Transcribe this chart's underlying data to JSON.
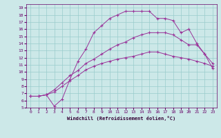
{
  "background_color": "#cce8e8",
  "line_color": "#993399",
  "grid_color": "#99cccc",
  "xlabel": "Windchill (Refroidissement éolien,°C)",
  "xlim": [
    -0.5,
    23.5
  ],
  "ylim": [
    5,
    19.5
  ],
  "xticks": [
    0,
    1,
    2,
    3,
    4,
    5,
    6,
    7,
    8,
    9,
    10,
    11,
    12,
    13,
    14,
    15,
    16,
    17,
    18,
    19,
    20,
    21,
    22,
    23
  ],
  "yticks": [
    5,
    6,
    7,
    8,
    9,
    10,
    11,
    12,
    13,
    14,
    15,
    16,
    17,
    18,
    19
  ],
  "line1_x": [
    0,
    1,
    2,
    3,
    4,
    5,
    6,
    7,
    8,
    9,
    10,
    11,
    12,
    13,
    14,
    15,
    16,
    17,
    18,
    19,
    20,
    21,
    22,
    23
  ],
  "line1_y": [
    6.6,
    6.6,
    6.8,
    7.2,
    8.0,
    8.8,
    9.5,
    10.3,
    10.8,
    11.2,
    11.5,
    11.8,
    12.0,
    12.2,
    12.5,
    12.8,
    12.8,
    12.5,
    12.2,
    12.0,
    11.8,
    11.5,
    11.2,
    10.8
  ],
  "line2_x": [
    0,
    1,
    2,
    3,
    4,
    5,
    6,
    7,
    8,
    9,
    10,
    11,
    12,
    13,
    14,
    15,
    16,
    17,
    18,
    19,
    20,
    21,
    22,
    23
  ],
  "line2_y": [
    6.6,
    6.6,
    6.8,
    7.5,
    8.5,
    9.5,
    10.2,
    11.2,
    11.8,
    12.5,
    13.2,
    13.8,
    14.2,
    14.8,
    15.2,
    15.5,
    15.5,
    15.5,
    15.2,
    14.5,
    13.8,
    13.8,
    12.5,
    11.2
  ],
  "line3_x": [
    0,
    1,
    2,
    3,
    4,
    5,
    6,
    7,
    8,
    9,
    10,
    11,
    12,
    13,
    14,
    15,
    16,
    17,
    18,
    19,
    20,
    21,
    22,
    23
  ],
  "line3_y": [
    6.6,
    6.6,
    6.8,
    5.2,
    6.2,
    9.0,
    11.5,
    13.2,
    15.5,
    16.5,
    17.5,
    18.0,
    18.5,
    18.5,
    18.5,
    18.5,
    17.5,
    17.5,
    17.2,
    15.5,
    16.0,
    14.0,
    12.5,
    10.5
  ]
}
